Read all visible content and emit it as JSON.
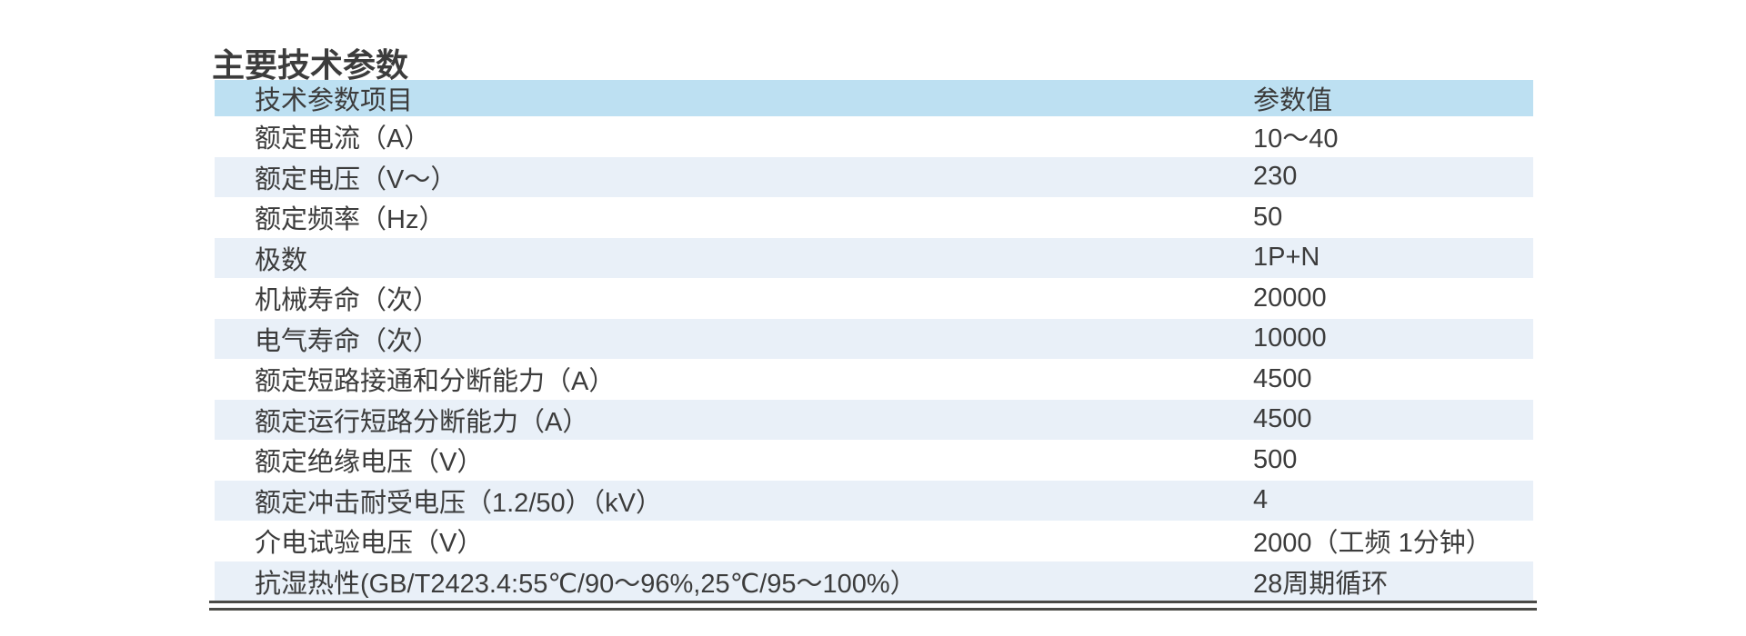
{
  "page": {
    "title": "主要技术参数"
  },
  "table": {
    "columns": [
      {
        "label": "技术参数项目"
      },
      {
        "label": "参数值"
      }
    ],
    "rows": [
      {
        "param": "额定电流（A）",
        "value": "10～40"
      },
      {
        "param": "额定电压（V～）",
        "value": "230"
      },
      {
        "param": "额定频率（Hz）",
        "value": "50"
      },
      {
        "param": "极数",
        "value": "1P+N"
      },
      {
        "param": "机械寿命（次）",
        "value": "20000"
      },
      {
        "param": "电气寿命（次）",
        "value": "10000"
      },
      {
        "param": "额定短路接通和分断能力（A）",
        "value": "4500"
      },
      {
        "param": "额定运行短路分断能力（A）",
        "value": "4500"
      },
      {
        "param": "额定绝缘电压（V）",
        "value": "500"
      },
      {
        "param": "额定冲击耐受电压（1.2/50）（kV）",
        "value": "4"
      },
      {
        "param": "介电试验电压（V）",
        "value": "2000（工频 1分钟）"
      },
      {
        "param": "抗湿热性(GB/T2423.4:55℃/90～96%,25℃/95～100%）",
        "value": "28周期循环"
      }
    ]
  },
  "colors": {
    "header_bg": "#bde0f2",
    "row_alt_bg": "#e9f0f8",
    "text": "#3c3c3c",
    "rule": "#4a4a46"
  }
}
